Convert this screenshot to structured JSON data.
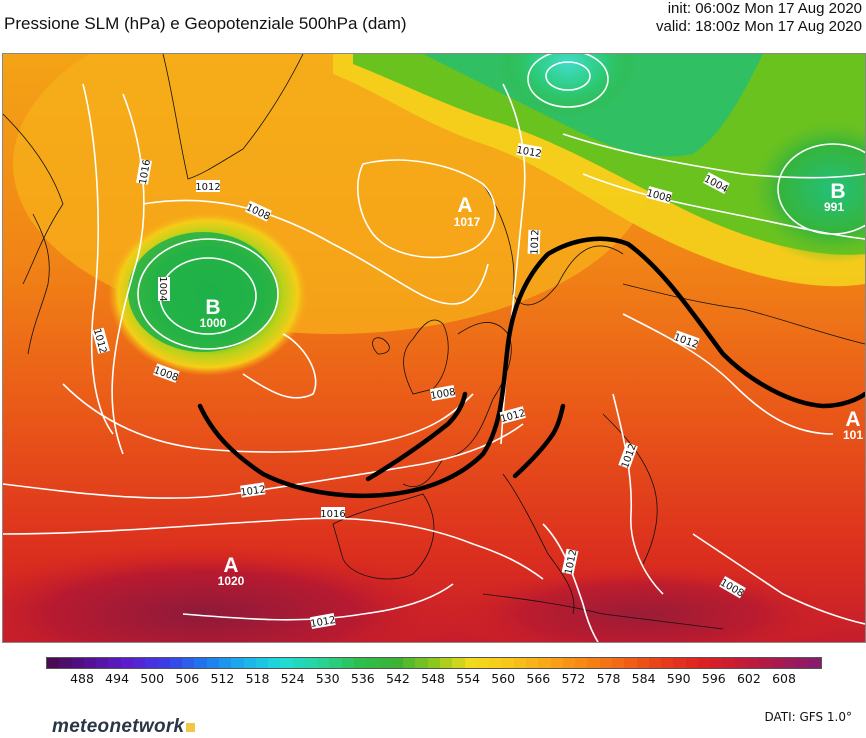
{
  "header": {
    "title": "Pressione SLM (hPa) e Geopotenziale 500hPa (dam)",
    "init": "init: 06:00z Mon 17 Aug 2020",
    "valid": "valid: 18:00z Mon 17 Aug 2020"
  },
  "map": {
    "centers": [
      {
        "letter": "A",
        "value": "1017",
        "kind": "high"
      },
      {
        "letter": "B",
        "value": "1000",
        "kind": "low"
      },
      {
        "letter": "B",
        "value": "991",
        "kind": "low"
      },
      {
        "letter": "A",
        "value": "1020",
        "kind": "high"
      },
      {
        "letter": "A",
        "value": "101",
        "kind": "high"
      }
    ],
    "isobar_labels": [
      "1016",
      "1012",
      "1008",
      "1004",
      "1012",
      "1008",
      "1012",
      "1004",
      "1008",
      "1012",
      "1008",
      "1012",
      "1012",
      "1016",
      "1012",
      "1012",
      "1012",
      "1008",
      "1012"
    ]
  },
  "legend": {
    "ticks": [
      "488",
      "494",
      "500",
      "506",
      "512",
      "518",
      "524",
      "530",
      "536",
      "542",
      "548",
      "554",
      "560",
      "566",
      "572",
      "578",
      "584",
      "590",
      "596",
      "602",
      "608"
    ],
    "colors": [
      "#4a0b54",
      "#55109a",
      "#5c1ecf",
      "#3a3ee8",
      "#1e78ee",
      "#1ab0ec",
      "#1edcd8",
      "#27d49a",
      "#2cc050",
      "#3ab234",
      "#8cc81c",
      "#f2dc1c",
      "#f7c61a",
      "#f8a616",
      "#f78614",
      "#f16316",
      "#e73e1a",
      "#dd2222",
      "#c81b34",
      "#a91a4e",
      "#8a1c6c"
    ]
  },
  "footer": {
    "brand": "meteonetwork",
    "source": "DATI: GFS 1.0°"
  }
}
